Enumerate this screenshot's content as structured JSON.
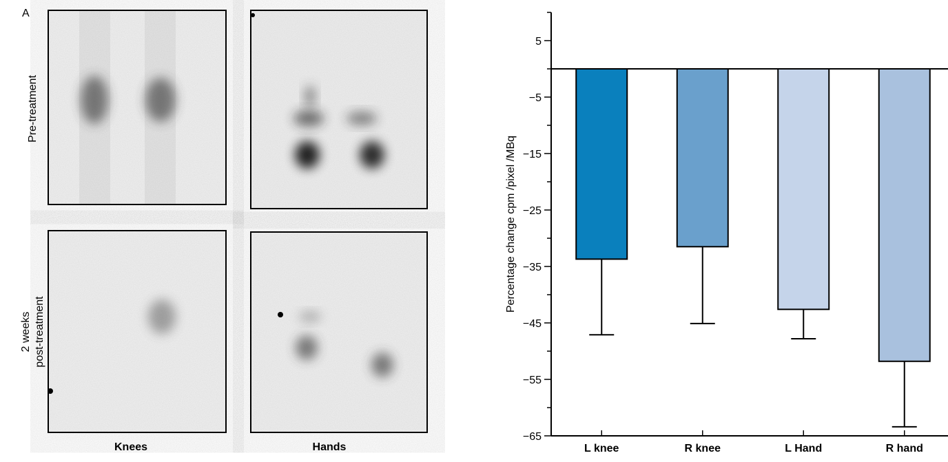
{
  "panel_label": "A",
  "image_panels": {
    "row_labels": [
      "Pre-treatment",
      "2 weeks\npost-treatment"
    ],
    "column_labels": [
      "Knees",
      "Hands"
    ]
  },
  "chart_data": {
    "type": "bar",
    "ylabel": "Percentage change cpm /pixel /MBq",
    "categories": [
      "L knee",
      "R knee",
      "L Hand",
      "R hand"
    ],
    "values": [
      -33.7,
      -31.5,
      -42.6,
      -51.8
    ],
    "errors": [
      13.4,
      13.6,
      5.2,
      11.6
    ],
    "colors": [
      "#0a80bd",
      "#6aa0cc",
      "#c5d4ea",
      "#a9c1de"
    ],
    "ylim": [
      -65,
      10
    ],
    "yticks": [
      {
        "value": -65,
        "label": "−65"
      },
      {
        "value": -55,
        "label": "−55"
      },
      {
        "value": -45,
        "label": "−45"
      },
      {
        "value": -35,
        "label": "−35"
      },
      {
        "value": -25,
        "label": "−25"
      },
      {
        "value": -15,
        "label": "−15"
      },
      {
        "value": -5,
        "label": "−5"
      },
      5
    ],
    "minor_yticks": [
      -60,
      -50,
      -40,
      -30,
      -20,
      -10,
      0,
      10
    ]
  }
}
